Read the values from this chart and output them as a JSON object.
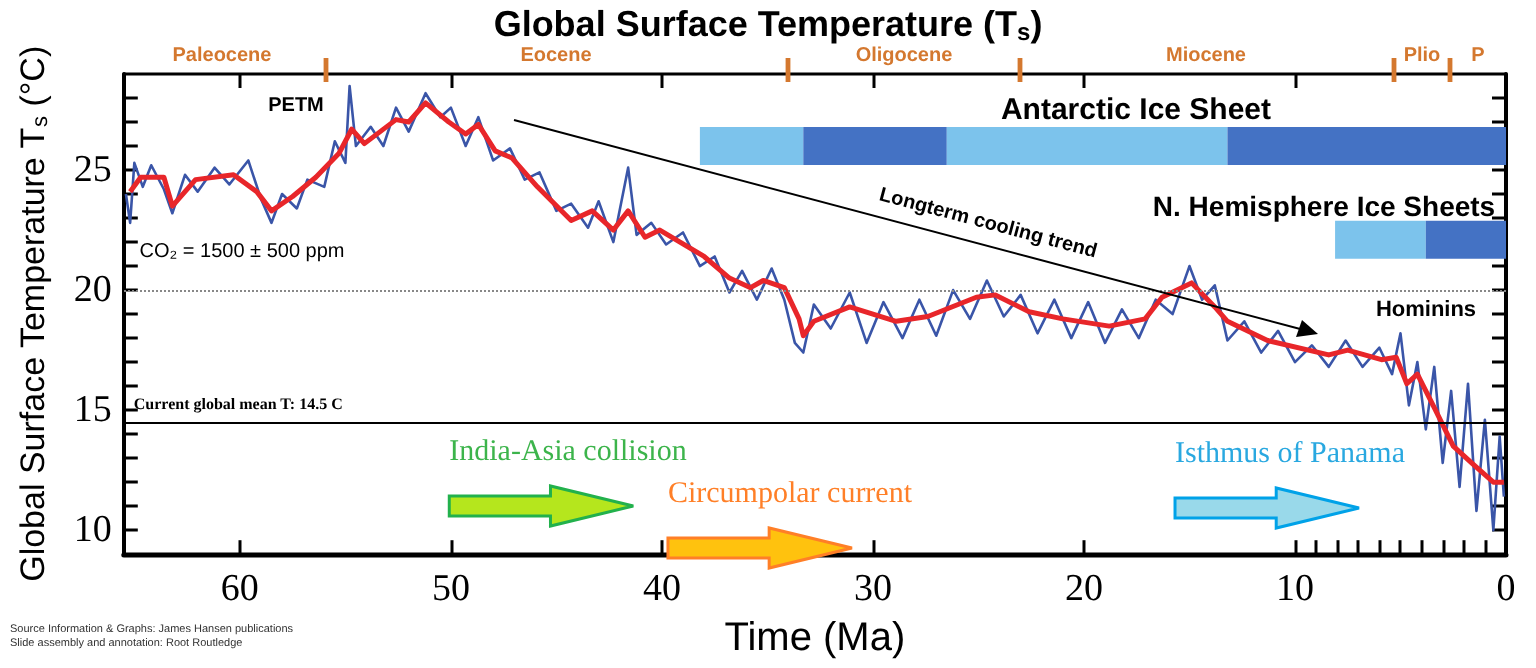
{
  "chart_data": {
    "type": "line",
    "title": "Global Surface Temperature (T$_{s}$)",
    "xlabel": "Time (Ma)",
    "ylabel": "Global Surface Temperature T$_{s}$ (°C)",
    "xlim": [
      65.5,
      0
    ],
    "xticks": [
      60,
      50,
      40,
      30,
      20,
      10,
      0,
      {
        "value": 9,
        "label": null
      },
      {
        "value": 8,
        "label": null
      },
      {
        "value": 7,
        "label": null
      },
      {
        "value": 6,
        "label": null
      },
      {
        "value": 5,
        "label": null
      },
      {
        "value": 4,
        "label": null
      },
      {
        "value": 3,
        "label": null
      },
      {
        "value": 2,
        "label": null
      },
      {
        "value": 1,
        "label": null
      }
    ],
    "ylim": [
      9,
      29
    ],
    "yticks": [
      10,
      15,
      20,
      25,
      {
        "value": 11,
        "label": null
      },
      {
        "value": 12,
        "label": null
      },
      {
        "value": 13,
        "label": null
      },
      {
        "value": 14,
        "label": null
      },
      {
        "value": 16,
        "label": null
      },
      {
        "value": 17,
        "label": null
      },
      {
        "value": 18,
        "label": null
      },
      {
        "value": 19,
        "label": null
      },
      {
        "value": 21,
        "label": null
      },
      {
        "value": 22,
        "label": null
      },
      {
        "value": 23,
        "label": null
      },
      {
        "value": 24,
        "label": null
      },
      {
        "value": 26,
        "label": null
      },
      {
        "value": 27,
        "label": null
      },
      {
        "value": 28,
        "label": null
      }
    ],
    "grid": false,
    "marker": "none",
    "line_style": "solid",
    "series": [
      {
        "color": "#3a55a8",
        "x": [
          65.4,
          65.2,
          65.0,
          64.6,
          64.2,
          63.6,
          63.2,
          62.6,
          62.0,
          61.2,
          60.5,
          59.6,
          59.0,
          58.5,
          58.0,
          57.3,
          56.8,
          56.0,
          55.5,
          55.0,
          54.8,
          54.5,
          53.8,
          53.2,
          52.6,
          52.0,
          51.2,
          50.5,
          50.0,
          49.3,
          48.7,
          48.0,
          47.2,
          46.5,
          45.8,
          45.0,
          44.3,
          43.5,
          43.0,
          42.3,
          41.6,
          41.2,
          40.5,
          39.8,
          39.0,
          38.2,
          37.5,
          36.8,
          36.2,
          35.5,
          34.8,
          34.2,
          33.7,
          33.3,
          32.8,
          32.0,
          31.1,
          30.3,
          29.5,
          28.6,
          27.8,
          27.0,
          26.2,
          25.4,
          24.6,
          23.8,
          23.0,
          22.2,
          21.4,
          20.6,
          19.8,
          19.0,
          18.2,
          17.4,
          16.6,
          15.8,
          15.0,
          14.4,
          13.8,
          13.2,
          12.4,
          11.6,
          10.8,
          10.0,
          9.2,
          8.4,
          7.6,
          6.8,
          6.0,
          5.4,
          5.0,
          4.6,
          4.2,
          3.8,
          3.4,
          3.0,
          2.6,
          2.2,
          1.8,
          1.4,
          1.0,
          0.6,
          0.3,
          0.1
        ],
        "values": [
          24.0,
          22.8,
          25.3,
          24.3,
          25.2,
          24.2,
          23.2,
          24.8,
          24.1,
          25.1,
          24.4,
          25.4,
          23.8,
          22.8,
          24.0,
          23.4,
          24.6,
          24.3,
          26.2,
          25.3,
          28.5,
          26.0,
          26.8,
          26.0,
          27.6,
          26.6,
          28.2,
          27.2,
          27.6,
          26.0,
          27.2,
          25.4,
          25.9,
          24.6,
          24.9,
          23.3,
          23.6,
          22.6,
          23.7,
          22.0,
          25.1,
          22.3,
          22.8,
          21.9,
          22.4,
          21.0,
          21.4,
          19.9,
          20.8,
          19.6,
          20.9,
          19.6,
          17.8,
          17.4,
          19.4,
          18.4,
          19.9,
          17.8,
          19.5,
          18.0,
          19.6,
          18.1,
          20.0,
          18.8,
          20.4,
          18.9,
          19.8,
          18.2,
          19.6,
          18.0,
          19.5,
          17.8,
          19.2,
          18.0,
          19.6,
          19.0,
          21.0,
          19.6,
          20.2,
          17.9,
          18.7,
          17.4,
          18.3,
          17.0,
          17.7,
          16.8,
          17.9,
          16.8,
          17.6,
          16.5,
          18.2,
          15.2,
          17.0,
          14.2,
          16.8,
          12.8,
          15.8,
          11.8,
          16.1,
          10.8,
          14.6,
          10.0,
          13.9,
          11.4
        ]
      },
      {
        "color": "#e8262a",
        "x": [
          65.2,
          64.7,
          64.3,
          63.6,
          63.2,
          62.1,
          60.3,
          59.2,
          58.5,
          57.5,
          56.4,
          55.3,
          54.7,
          54.1,
          52.6,
          52.0,
          51.2,
          50.1,
          49.3,
          48.7,
          47.9,
          47.1,
          45.9,
          44.3,
          43.3,
          42.3,
          41.6,
          40.8,
          40.1,
          38.0,
          36.8,
          35.8,
          35.2,
          34.2,
          33.5,
          33.3,
          32.8,
          31.1,
          28.9,
          27.4,
          25.1,
          24.2,
          22.6,
          21.0,
          18.8,
          17.1,
          16.3,
          14.9,
          13.8,
          13.2,
          11.3,
          8.4,
          7.5,
          5.9,
          5.2,
          4.7,
          4.2,
          3.4,
          2.5,
          1.5,
          0.6,
          0.1
        ],
        "values": [
          24.1,
          24.7,
          24.7,
          24.7,
          23.5,
          24.6,
          24.8,
          24.1,
          23.3,
          23.9,
          24.7,
          25.7,
          26.7,
          26.1,
          27.1,
          27.0,
          27.8,
          27.0,
          26.5,
          26.9,
          25.8,
          25.5,
          24.3,
          22.9,
          23.3,
          22.5,
          23.3,
          22.2,
          22.5,
          21.4,
          20.5,
          20.1,
          20.4,
          20.1,
          18.8,
          18.1,
          18.7,
          19.3,
          18.7,
          18.9,
          19.7,
          19.8,
          19.1,
          18.8,
          18.5,
          18.8,
          19.7,
          20.3,
          19.3,
          18.7,
          17.9,
          17.3,
          17.5,
          17.1,
          17.2,
          16.1,
          16.5,
          15.1,
          13.5,
          12.7,
          12.0,
          12.0
        ]
      },
      {
        "color": "#7cc3ec",
        "x": [
          38.2,
          33.3
        ],
        "values": [
          26.0,
          26.0
        ]
      },
      {
        "color": "#4472c4",
        "x": [
          33.3,
          26.5
        ],
        "values": [
          26.0,
          26.0
        ]
      },
      {
        "color": "#7cc3ec",
        "x": [
          26.5,
          13.2
        ],
        "values": [
          26.0,
          26.0
        ]
      },
      {
        "color": "#4472c4",
        "x": [
          13.2,
          0
        ],
        "values": [
          26.0,
          26.0
        ]
      },
      {
        "color": "#7cc3ec",
        "x": [
          8.1,
          3.8
        ],
        "values": [
          22.1,
          22.1
        ]
      },
      {
        "color": "#4472c4",
        "x": [
          3.8,
          0
        ],
        "values": [
          22.1,
          22.1
        ]
      }
    ],
    "ref_lines": [
      {
        "axis": "y",
        "value": 14.5,
        "label": "Current global mean T: 14.5 C",
        "color": "#000000",
        "line_style": "solid"
      },
      {
        "axis": "y",
        "value": 20,
        "color": "#888888",
        "line_style": "dotted"
      }
    ],
    "annotations": [
      "PETM",
      "CO₂ = 1500 ± 500 ppm",
      "Longterm cooling trend",
      "Antarctic Ice Sheet",
      "N. Hemisphere Ice Sheets",
      "Hominins",
      "India-Asia collision",
      "Circumpolar current",
      "Isthmus of Panama",
      "Paleocene",
      "Eocene",
      "Oligocene",
      "Miocene",
      "Plio",
      "P",
      "Source Information & Graphs: James Hansen publications",
      "Slide assembly and annotation: Root Routledge"
    ]
  }
}
